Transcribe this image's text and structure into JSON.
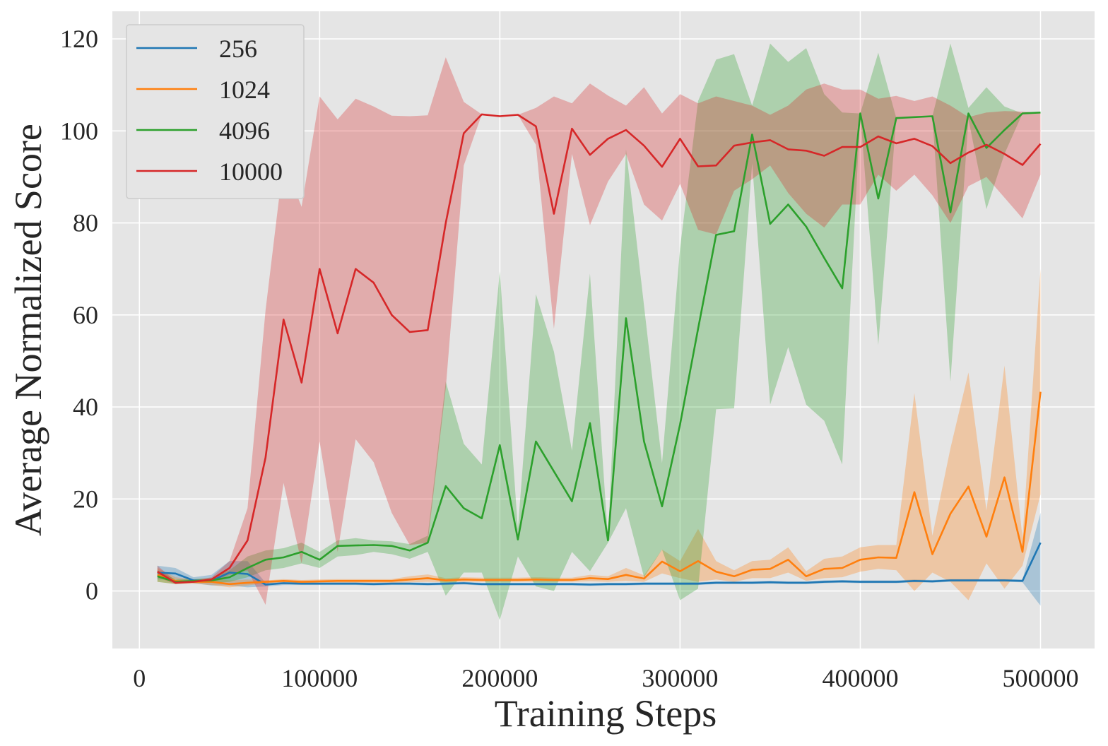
{
  "chart_data": {
    "type": "line",
    "title": "",
    "xlabel": "Training Steps",
    "ylabel": "Average Normalized Score",
    "xlim": [
      -15000,
      530000
    ],
    "ylim": [
      -12.5,
      126
    ],
    "xticks": [
      0,
      100000,
      200000,
      300000,
      400000,
      500000
    ],
    "yticks": [
      0,
      20,
      40,
      60,
      80,
      100,
      120
    ],
    "grid": true,
    "legend_position": "top-left",
    "x": [
      10000,
      20000,
      30000,
      40000,
      50000,
      60000,
      70000,
      80000,
      90000,
      100000,
      110000,
      120000,
      130000,
      140000,
      150000,
      160000,
      170000,
      180000,
      190000,
      200000,
      210000,
      220000,
      230000,
      240000,
      250000,
      260000,
      270000,
      280000,
      290000,
      300000,
      310000,
      320000,
      330000,
      340000,
      350000,
      360000,
      370000,
      380000,
      390000,
      400000,
      410000,
      420000,
      430000,
      440000,
      450000,
      460000,
      470000,
      480000,
      490000,
      500000
    ],
    "series": [
      {
        "name": "256",
        "color": "#1f77b4",
        "values": [
          4,
          3.8,
          2.3,
          2.2,
          4.0,
          3.7,
          1.4,
          1.7,
          1.6,
          1.6,
          1.6,
          1.6,
          1.5,
          1.6,
          1.6,
          1.5,
          1.6,
          1.7,
          1.5,
          1.5,
          1.5,
          1.5,
          1.5,
          1.5,
          1.4,
          1.5,
          1.5,
          1.6,
          1.6,
          1.6,
          1.6,
          1.8,
          1.8,
          1.8,
          1.9,
          1.8,
          1.8,
          2.0,
          2.1,
          2.0,
          2.0,
          2.0,
          2.2,
          2.1,
          2.3,
          2.3,
          2.3,
          2.3,
          2.2,
          10.5
        ],
        "lower": [
          2.5,
          2.5,
          1.7,
          1.2,
          1.2,
          0.8,
          1.0,
          1.3,
          1.3,
          1.3,
          1.3,
          1.3,
          1.2,
          1.3,
          1.3,
          1.2,
          1.3,
          1.4,
          1.2,
          1.2,
          1.2,
          1.2,
          1.2,
          1.2,
          1.1,
          1.2,
          1.2,
          1.3,
          1.3,
          1.3,
          1.3,
          1.5,
          1.5,
          1.5,
          1.6,
          1.5,
          1.5,
          1.7,
          1.8,
          1.7,
          1.7,
          1.7,
          1.9,
          1.8,
          2.0,
          2.0,
          2.0,
          2.0,
          1.9,
          -3.2
        ],
        "upper": [
          5.5,
          5.0,
          3.0,
          3.5,
          6.5,
          6.5,
          1.8,
          2.0,
          1.9,
          1.9,
          1.9,
          1.9,
          1.8,
          1.9,
          1.9,
          1.8,
          1.9,
          2.0,
          1.8,
          1.8,
          1.8,
          1.8,
          1.8,
          1.8,
          1.7,
          1.8,
          1.8,
          1.9,
          1.9,
          1.9,
          1.9,
          2.1,
          2.1,
          2.1,
          2.2,
          2.1,
          2.1,
          2.3,
          2.4,
          2.3,
          2.3,
          2.3,
          2.5,
          2.4,
          2.6,
          2.6,
          2.6,
          2.6,
          2.5,
          17.0
        ]
      },
      {
        "name": "1024",
        "color": "#ff7f0e",
        "values": [
          3.5,
          2.2,
          2.0,
          2.0,
          1.5,
          1.8,
          2.0,
          2.2,
          2.0,
          2.1,
          2.2,
          2.2,
          2.2,
          2.2,
          2.5,
          2.8,
          2.3,
          2.5,
          2.4,
          2.4,
          2.4,
          2.5,
          2.4,
          2.4,
          2.8,
          2.6,
          3.5,
          2.7,
          6.4,
          4.3,
          6.5,
          4.2,
          3.2,
          4.6,
          4.8,
          6.8,
          3.2,
          4.8,
          5.0,
          6.8,
          7.3,
          7.2,
          21.5,
          8.0,
          16.8,
          22.7,
          11.8,
          24.7,
          8.5,
          43.3
        ],
        "lower": [
          2.0,
          1.5,
          1.6,
          1.3,
          0.8,
          1.2,
          1.7,
          1.8,
          1.7,
          1.8,
          1.8,
          1.8,
          1.8,
          1.8,
          1.9,
          2.0,
          1.9,
          2.0,
          2.0,
          2.0,
          2.0,
          2.0,
          2.0,
          2.0,
          2.1,
          2.0,
          2.2,
          2.0,
          3.8,
          2.8,
          2.0,
          2.5,
          2.0,
          2.8,
          2.8,
          4.0,
          2.2,
          2.8,
          3.0,
          4.2,
          4.8,
          4.5,
          0.0,
          4.0,
          2.0,
          -2.0,
          6.0,
          0.5,
          5.5,
          21.0
        ],
        "upper": [
          5.0,
          3.0,
          2.5,
          2.8,
          2.3,
          2.5,
          2.3,
          2.6,
          2.4,
          2.5,
          2.6,
          2.6,
          2.6,
          2.6,
          3.2,
          3.6,
          2.8,
          3.0,
          2.9,
          2.9,
          2.9,
          3.0,
          2.9,
          2.9,
          3.5,
          3.2,
          5.0,
          3.4,
          9.0,
          6.5,
          13.5,
          6.5,
          4.5,
          6.5,
          6.8,
          9.5,
          4.3,
          7.0,
          7.5,
          9.5,
          10.0,
          10.0,
          43.0,
          12.0,
          31.0,
          47.5,
          17.5,
          49.0,
          11.5,
          70.0
        ]
      },
      {
        "name": "4096",
        "color": "#2ca02c",
        "values": [
          3.2,
          2.0,
          2.2,
          2.3,
          3.0,
          5.0,
          6.8,
          7.3,
          8.5,
          6.8,
          9.8,
          9.9,
          10.0,
          9.8,
          8.8,
          10.5,
          22.8,
          18.0,
          15.8,
          31.7,
          11.2,
          32.5,
          26.0,
          19.5,
          36.5,
          11.0,
          59.3,
          32.5,
          18.4,
          36.2,
          57.0,
          77.4,
          78.2,
          99.2,
          79.8,
          84.0,
          79.2,
          72.4,
          65.8,
          103.8,
          85.3,
          102.8,
          103.0,
          103.2,
          82.3,
          103.8,
          96.3,
          100.2,
          103.8,
          104.0
        ],
        "lower": [
          2.0,
          1.5,
          1.8,
          1.8,
          2.0,
          3.0,
          4.5,
          5.0,
          6.0,
          5.0,
          7.5,
          7.8,
          8.5,
          8.0,
          7.0,
          8.5,
          -1.0,
          4.0,
          4.0,
          -6.3,
          7.5,
          1.0,
          0.0,
          8.5,
          4.3,
          10.5,
          18.0,
          3.0,
          9.0,
          -2.0,
          0.5,
          39.5,
          39.7,
          93.0,
          40.5,
          53.0,
          40.5,
          37.0,
          27.5,
          103.8,
          53.5,
          102.8,
          103.0,
          103.2,
          45.5,
          102.5,
          83.0,
          95.0,
          103.8,
          104.0
        ],
        "upper": [
          4.5,
          2.5,
          2.6,
          2.8,
          4.5,
          7.5,
          8.8,
          9.3,
          10.5,
          8.5,
          11.0,
          11.5,
          11.0,
          10.8,
          10.2,
          12.0,
          45.5,
          32.0,
          27.5,
          69.5,
          13.5,
          64.5,
          52.0,
          30.5,
          69.0,
          11.5,
          96.0,
          62.0,
          27.8,
          74.5,
          106.5,
          115.5,
          116.7,
          105.5,
          119.0,
          115.0,
          118.0,
          108.0,
          104.0,
          103.8,
          117.0,
          102.8,
          103.0,
          103.2,
          119.0,
          105.0,
          109.5,
          105.3,
          103.8,
          104.0
        ]
      },
      {
        "name": "10000",
        "color": "#d62728",
        "values": [
          4.2,
          1.8,
          2.0,
          2.5,
          5.0,
          11.0,
          29.0,
          59.0,
          45.3,
          70.0,
          56.0,
          70.0,
          67.0,
          60.0,
          56.3,
          56.7,
          80.0,
          99.5,
          103.6,
          103.2,
          103.5,
          101.0,
          82.0,
          100.5,
          94.8,
          98.3,
          100.2,
          96.8,
          92.2,
          98.3,
          92.3,
          92.5,
          96.8,
          97.5,
          98.0,
          96.0,
          95.7,
          94.6,
          96.5,
          96.5,
          98.8,
          97.3,
          98.3,
          96.7,
          93.0,
          95.3,
          97.0,
          95.0,
          92.6,
          97.2
        ],
        "lower": [
          3.0,
          1.5,
          1.8,
          2.0,
          3.5,
          4.5,
          -3.0,
          23.5,
          6.0,
          32.5,
          8.5,
          33.0,
          28.0,
          17.0,
          10.0,
          10.5,
          44.0,
          92.5,
          103.6,
          103.2,
          103.5,
          97.0,
          57.0,
          95.0,
          79.5,
          89.0,
          95.0,
          84.0,
          80.5,
          88.5,
          78.5,
          77.5,
          87.0,
          89.5,
          92.5,
          86.5,
          82.0,
          79.0,
          84.0,
          84.0,
          90.5,
          87.0,
          90.5,
          86.0,
          80.0,
          88.0,
          90.0,
          85.5,
          81.0,
          90.5
        ],
        "upper": [
          5.5,
          2.2,
          2.3,
          3.0,
          6.5,
          18.0,
          61.0,
          93.5,
          83.5,
          107.5,
          102.5,
          107.0,
          105.3,
          103.3,
          103.2,
          103.4,
          116.0,
          106.3,
          103.6,
          103.2,
          103.5,
          105.0,
          107.5,
          106.0,
          110.3,
          107.7,
          105.5,
          109.5,
          103.8,
          108.0,
          106.0,
          107.5,
          106.5,
          105.5,
          103.5,
          105.5,
          109.0,
          110.3,
          109.0,
          109.0,
          107.0,
          107.6,
          106.5,
          107.5,
          105.5,
          103.0,
          104.0,
          104.3,
          104.2,
          104.0
        ]
      }
    ]
  }
}
